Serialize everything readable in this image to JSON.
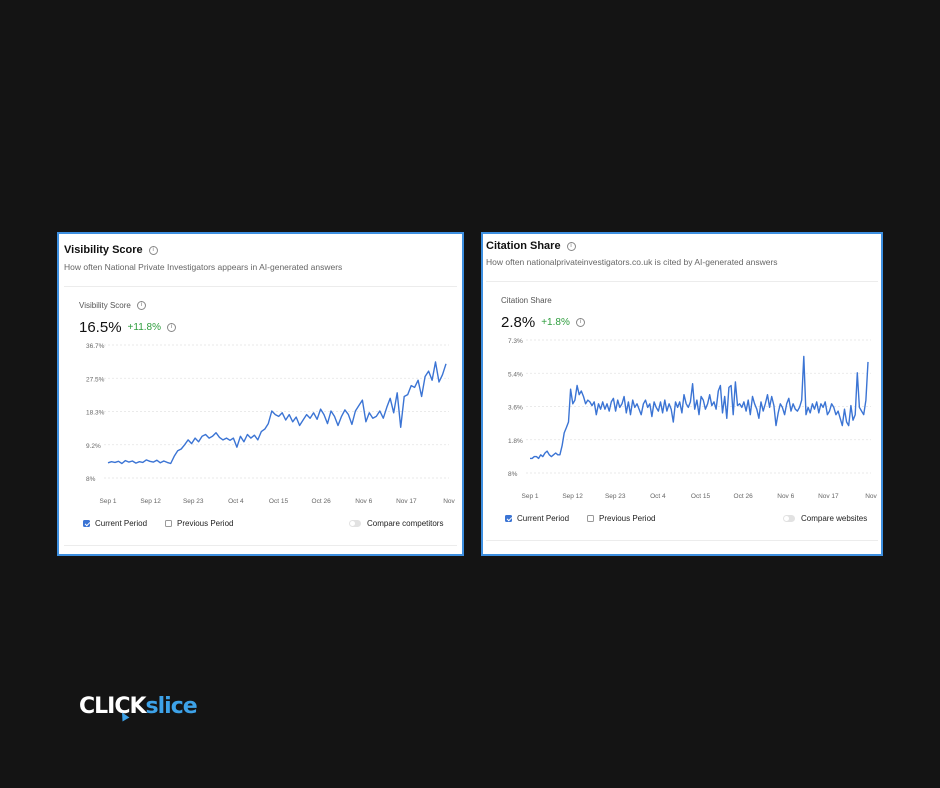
{
  "colors": {
    "accent": "#3b74d4",
    "frame": "#3d8fe0",
    "positive": "#2e9d3d",
    "brand_blue": "#3da2e8"
  },
  "brand": {
    "part1": "CLICK",
    "part2": "slice"
  },
  "visibility_card": {
    "title": "Visibility Score",
    "subtitle": "How often National Private Investigators appears in AI-generated answers",
    "metric_label": "Visibility Score",
    "value": "16.5%",
    "delta": "+11.8%",
    "legend": {
      "current": "Current Period",
      "previous": "Previous Period",
      "compare": "Compare competitors"
    }
  },
  "citation_card": {
    "title": "Citation Share",
    "subtitle": "How often nationalprivateinvestigators.co.uk is cited by AI-generated answers",
    "metric_label": "Citation Share",
    "value": "2.8%",
    "delta": "+1.8%",
    "legend": {
      "current": "Current Period",
      "previous": "Previous Period",
      "compare": "Compare websites"
    }
  },
  "chart_data": [
    {
      "type": "line",
      "y_ticks": [
        "36.7%",
        "27.5%",
        "18.3%",
        "9.2%",
        "8%"
      ],
      "ylim": [
        0,
        36.7
      ],
      "x_ticks": [
        "Sep 1",
        "Sep 12",
        "Sep 23",
        "Oct 4",
        "Oct 15",
        "Oct 26",
        "Nov 6",
        "Nov 17",
        "Nov"
      ],
      "grid": true,
      "values": [
        4.2,
        4.5,
        4.3,
        4.6,
        4.0,
        4.8,
        4.4,
        4.7,
        4.1,
        4.5,
        4.3,
        5.0,
        4.6,
        4.4,
        4.9,
        4.2,
        4.7,
        4.3,
        4.0,
        6.0,
        7.5,
        8.0,
        9.2,
        10.5,
        9.5,
        11.0,
        10.0,
        11.5,
        12.0,
        11.0,
        11.5,
        12.5,
        11.2,
        10.5,
        11.0,
        10.4,
        11.0,
        8.5,
        11.5,
        10.0,
        12.0,
        11.0,
        11.8,
        10.5,
        12.8,
        13.5,
        15.0,
        18.5,
        17.5,
        17.0,
        18.0,
        16.0,
        17.5,
        15.5,
        16.8,
        14.5,
        16.0,
        17.5,
        16.5,
        18.0,
        16.2,
        19.0,
        17.5,
        15.0,
        18.5,
        17.0,
        14.5,
        17.0,
        18.8,
        17.5,
        14.8,
        18.5,
        20.0,
        21.5,
        15.5,
        18.0,
        16.5,
        17.0,
        18.5,
        16.5,
        19.5,
        22.0,
        18.0,
        23.5,
        14.0,
        22.5,
        23.0,
        25.5,
        25.0,
        27.0,
        22.5,
        28.0,
        29.5,
        27.0,
        32.0,
        26.5,
        28.5,
        31.5
      ]
    },
    {
      "type": "line",
      "y_ticks": [
        "7.3%",
        "5.4%",
        "3.6%",
        "1.8%",
        "8%"
      ],
      "ylim": [
        0,
        7.3
      ],
      "x_ticks": [
        "Sep 1",
        "Sep 12",
        "Sep 23",
        "Oct 4",
        "Oct 15",
        "Oct 26",
        "Nov 6",
        "Nov 17",
        "Nov"
      ],
      "grid": true,
      "values": [
        0.8,
        0.8,
        0.9,
        0.9,
        0.8,
        1.0,
        0.9,
        1.1,
        1.2,
        1.0,
        0.9,
        1.0,
        1.1,
        1.0,
        1.0,
        1.5,
        2.2,
        2.5,
        2.8,
        4.6,
        3.8,
        4.0,
        4.8,
        4.3,
        4.5,
        4.2,
        3.8,
        4.0,
        3.9,
        3.7,
        3.9,
        3.2,
        3.8,
        3.5,
        3.9,
        3.5,
        3.8,
        3.4,
        3.9,
        4.1,
        3.4,
        4.0,
        3.6,
        3.8,
        4.2,
        3.3,
        3.9,
        3.2,
        4.0,
        3.6,
        3.8,
        3.5,
        3.2,
        3.8,
        4.0,
        3.6,
        3.8,
        3.1,
        3.9,
        3.6,
        3.4,
        3.9,
        3.3,
        4.0,
        3.4,
        3.8,
        3.5,
        2.8,
        3.9,
        3.6,
        3.9,
        3.3,
        4.3,
        3.8,
        3.6,
        3.9,
        4.9,
        3.5,
        4.0,
        3.2,
        4.2,
        4.0,
        3.5,
        3.8,
        4.3,
        3.7,
        3.9,
        3.5,
        4.5,
        4.8,
        3.3,
        4.2,
        3.0,
        4.7,
        4.8,
        3.2,
        5.0,
        3.7,
        3.8,
        3.6,
        3.9,
        3.4,
        4.0,
        3.2,
        4.2,
        3.8,
        3.5,
        3.0,
        3.9,
        3.4,
        3.8,
        4.3,
        3.6,
        4.2,
        3.7,
        2.6,
        3.3,
        3.8,
        3.6,
        3.2,
        3.8,
        4.1,
        3.4,
        3.8,
        3.5,
        3.4,
        3.6,
        4.0,
        6.4,
        3.2,
        3.6,
        3.3,
        3.8,
        3.5,
        3.9,
        3.3,
        3.8,
        3.6,
        3.9,
        3.2,
        3.4,
        3.8,
        3.6,
        3.2,
        3.4,
        3.0,
        2.6,
        3.5,
        2.8,
        2.6,
        3.7,
        2.9,
        3.2,
        5.5,
        3.6,
        3.4,
        3.2,
        4.0,
        6.1
      ]
    }
  ]
}
